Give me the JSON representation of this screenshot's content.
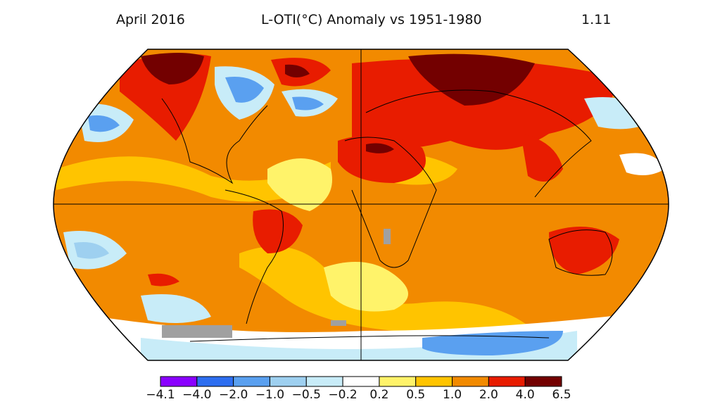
{
  "header": {
    "date": "April 2016",
    "title": "L-OTI(°C) Anomaly vs 1951-1980",
    "global_mean": "1.11"
  },
  "legend": {
    "colors": [
      "#8a00ff",
      "#2d6ef0",
      "#5aa0f0",
      "#9ed0f0",
      "#c8ecf8",
      "#ffffff",
      "#fff36a",
      "#ffc400",
      "#f28a00",
      "#e81c00",
      "#730000"
    ],
    "labels": [
      "−4.1",
      "−4.0",
      "−2.0",
      "−1.0",
      "−0.5",
      "−0.2",
      "0.2",
      "0.5",
      "1.0",
      "2.0",
      "4.0",
      "6.5"
    ]
  },
  "colors": {
    "no_data": "#a0a0a0",
    "land_outline": "#000000",
    "graticule": "#000000"
  }
}
